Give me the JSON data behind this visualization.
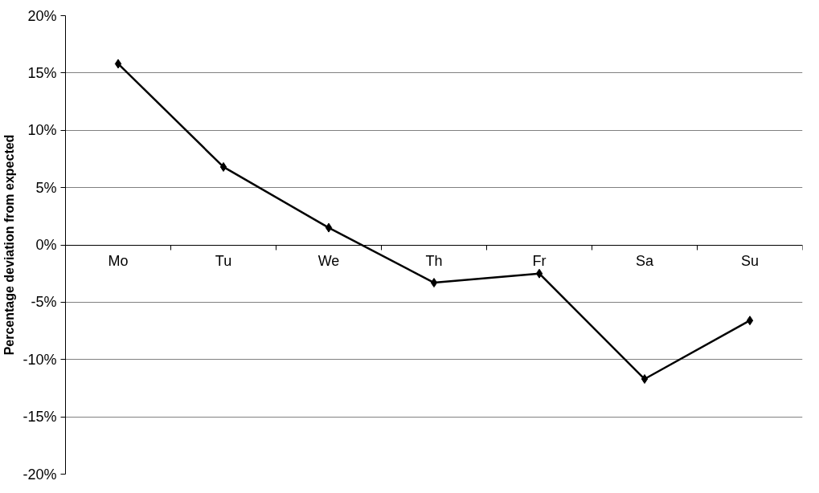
{
  "chart_data": {
    "type": "line",
    "ylabel": "Percentage deviation from expected",
    "categories": [
      "Mo",
      "Tu",
      "We",
      "Th",
      "Fr",
      "Sa",
      "Su"
    ],
    "series": [
      {
        "color": "#000000",
        "values": [
          15.8,
          6.8,
          1.5,
          -3.3,
          -2.5,
          -11.7,
          -6.6
        ]
      }
    ],
    "ylim": [
      -20,
      20
    ],
    "yticks": [
      {
        "value": -20,
        "label": "-20%"
      },
      {
        "value": -15,
        "label": "-15%"
      },
      {
        "value": -10,
        "label": "-10%"
      },
      {
        "value": -5,
        "label": "-5%"
      },
      {
        "value": 0,
        "label": "0%"
      },
      {
        "value": 5,
        "label": "5%"
      },
      {
        "value": 10,
        "label": "10%"
      },
      {
        "value": 15,
        "label": "15%"
      },
      {
        "value": 20,
        "label": "20%"
      }
    ],
    "grid": "y",
    "marker": "diamond",
    "line_style": "solid"
  }
}
